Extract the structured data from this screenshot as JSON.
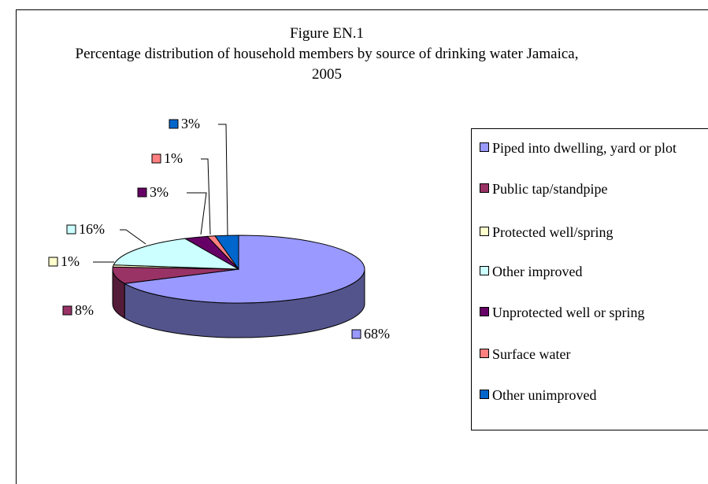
{
  "chart_data": {
    "type": "pie",
    "title": "Figure EN.1",
    "subtitle": "Percentage distribution of household members by source of drinking water Jamaica, 2005",
    "categories": [
      "Piped into dwelling, yard or plot",
      "Public tap/standpipe",
      "Protected well/spring",
      "Other improved",
      "Unprotected well or spring",
      "Surface water",
      "Other unimproved"
    ],
    "values": [
      68,
      8,
      1,
      16,
      3,
      1,
      3
    ],
    "value_labels": [
      "68%",
      "8%",
      "1%",
      "16%",
      "3%",
      "1%",
      "3%"
    ],
    "colors": [
      "#9999ff",
      "#993366",
      "#ffffcc",
      "#ccffff",
      "#660066",
      "#ff8080",
      "#0066cc"
    ],
    "legend": "right"
  }
}
